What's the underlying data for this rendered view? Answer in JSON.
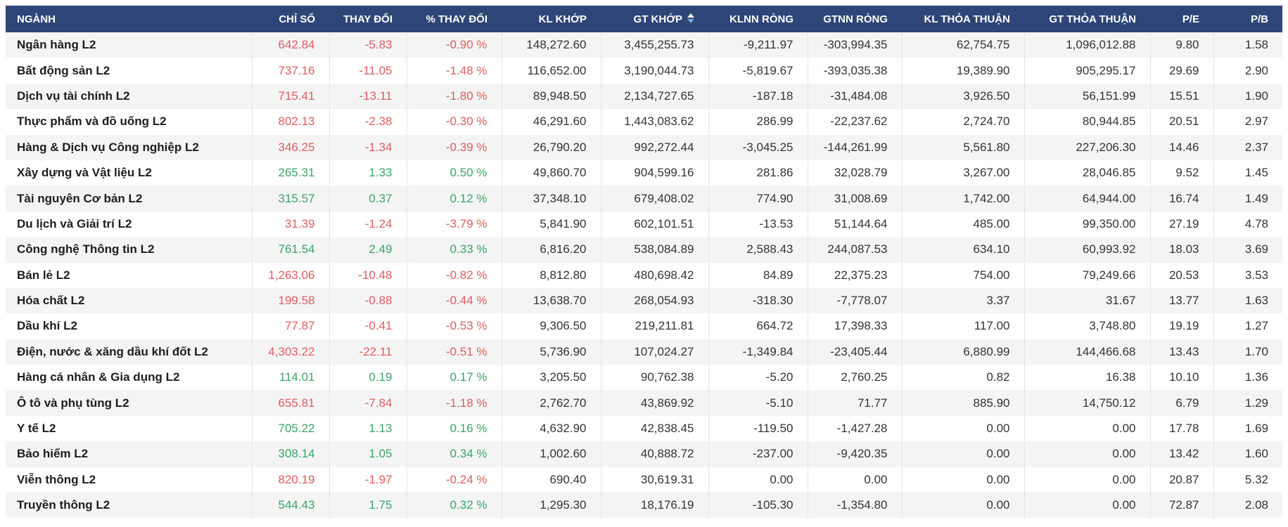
{
  "colors": {
    "header_bg": "#2e4677",
    "header_text": "#ffffff",
    "negative": "#e05c5c",
    "positive": "#3da366",
    "row_alt": "#f4f4f5",
    "cell_divider": "#e4e4e4",
    "sort_icon_active": "#ffffff",
    "sort_icon_inactive": "#7ea9dd"
  },
  "table": {
    "columns": [
      {
        "label": "NGÀNH",
        "align": "left"
      },
      {
        "label": "CHỈ SỐ",
        "align": "right"
      },
      {
        "label": "THAY ĐỔI",
        "align": "right"
      },
      {
        "label": "% THAY ĐỔI",
        "align": "right"
      },
      {
        "label": "KL KHỚP",
        "align": "right"
      },
      {
        "label": "GT KHỚP",
        "align": "right",
        "sorted": true,
        "sort_icon": "sort-arrows-icon"
      },
      {
        "label": "KLNN RÒNG",
        "align": "right"
      },
      {
        "label": "GTNN RÒNG",
        "align": "right"
      },
      {
        "label": "KL THỎA THUẬN",
        "align": "right"
      },
      {
        "label": "GT THỎA THUẬN",
        "align": "right"
      },
      {
        "label": "P/E",
        "align": "right"
      },
      {
        "label": "P/B",
        "align": "right"
      }
    ],
    "rows": [
      {
        "name": "Ngân hàng L2",
        "trend": "down",
        "cells": [
          "642.84",
          "-5.83",
          "-0.90 %",
          "148,272.60",
          "3,455,255.73",
          "-9,211.97",
          "-303,994.35",
          "62,754.75",
          "1,096,012.88",
          "9.80",
          "1.58"
        ]
      },
      {
        "name": "Bất động sản L2",
        "trend": "down",
        "cells": [
          "737.16",
          "-11.05",
          "-1.48 %",
          "116,652.00",
          "3,190,044.73",
          "-5,819.67",
          "-393,035.38",
          "19,389.90",
          "905,295.17",
          "29.69",
          "2.90"
        ]
      },
      {
        "name": "Dịch vụ tài chính L2",
        "trend": "down",
        "cells": [
          "715.41",
          "-13.11",
          "-1.80 %",
          "89,948.50",
          "2,134,727.65",
          "-187.18",
          "-31,484.08",
          "3,926.50",
          "56,151.99",
          "15.51",
          "1.90"
        ]
      },
      {
        "name": "Thực phẩm và đồ uống L2",
        "trend": "down",
        "cells": [
          "802.13",
          "-2.38",
          "-0.30 %",
          "46,291.60",
          "1,443,083.62",
          "286.99",
          "-22,237.62",
          "2,724.70",
          "80,944.85",
          "20.51",
          "2.97"
        ]
      },
      {
        "name": "Hàng & Dịch vụ Công nghiệp L2",
        "trend": "down",
        "cells": [
          "346.25",
          "-1.34",
          "-0.39 %",
          "26,790.20",
          "992,272.44",
          "-3,045.25",
          "-144,261.99",
          "5,561.80",
          "227,206.30",
          "14.46",
          "2.37"
        ]
      },
      {
        "name": "Xây dựng và Vật liệu L2",
        "trend": "up",
        "cells": [
          "265.31",
          "1.33",
          "0.50 %",
          "49,860.70",
          "904,599.16",
          "281.86",
          "32,028.79",
          "3,267.00",
          "28,046.85",
          "9.52",
          "1.45"
        ]
      },
      {
        "name": "Tài nguyên Cơ bản L2",
        "trend": "up",
        "cells": [
          "315.57",
          "0.37",
          "0.12 %",
          "37,348.10",
          "679,408.02",
          "774.90",
          "31,008.69",
          "1,742.00",
          "64,944.00",
          "16.74",
          "1.49"
        ]
      },
      {
        "name": "Du lịch và Giải trí L2",
        "trend": "down",
        "cells": [
          "31.39",
          "-1.24",
          "-3.79 %",
          "5,841.90",
          "602,101.51",
          "-13.53",
          "51,144.64",
          "485.00",
          "99,350.00",
          "27.19",
          "4.78"
        ]
      },
      {
        "name": "Công nghệ Thông tin L2",
        "trend": "up",
        "cells": [
          "761.54",
          "2.49",
          "0.33 %",
          "6,816.20",
          "538,084.89",
          "2,588.43",
          "244,087.53",
          "634.10",
          "60,993.92",
          "18.03",
          "3.69"
        ]
      },
      {
        "name": "Bán lẻ L2",
        "trend": "down",
        "cells": [
          "1,263.06",
          "-10.48",
          "-0.82 %",
          "8,812.80",
          "480,698.42",
          "84.89",
          "22,375.23",
          "754.00",
          "79,249.66",
          "20.53",
          "3.53"
        ]
      },
      {
        "name": "Hóa chất L2",
        "trend": "down",
        "cells": [
          "199.58",
          "-0.88",
          "-0.44 %",
          "13,638.70",
          "268,054.93",
          "-318.30",
          "-7,778.07",
          "3.37",
          "31.67",
          "13.77",
          "1.63"
        ]
      },
      {
        "name": "Dầu khí L2",
        "trend": "down",
        "cells": [
          "77.87",
          "-0.41",
          "-0.53 %",
          "9,306.50",
          "219,211.81",
          "664.72",
          "17,398.33",
          "117.00",
          "3,748.80",
          "19.19",
          "1.27"
        ]
      },
      {
        "name": "Điện, nước & xăng dầu khí đốt L2",
        "trend": "down",
        "cells": [
          "4,303.22",
          "-22.11",
          "-0.51 %",
          "5,736.90",
          "107,024.27",
          "-1,349.84",
          "-23,405.44",
          "6,880.99",
          "144,466.68",
          "13.43",
          "1.70"
        ]
      },
      {
        "name": "Hàng cá nhân & Gia dụng L2",
        "trend": "up",
        "cells": [
          "114.01",
          "0.19",
          "0.17 %",
          "3,205.50",
          "90,762.38",
          "-5.20",
          "2,760.25",
          "0.82",
          "16.38",
          "10.10",
          "1.36"
        ]
      },
      {
        "name": "Ô tô và phụ tùng L2",
        "trend": "down",
        "cells": [
          "655.81",
          "-7.84",
          "-1.18 %",
          "2,762.70",
          "43,869.92",
          "-5.10",
          "71.77",
          "885.90",
          "14,750.12",
          "6.79",
          "1.29"
        ]
      },
      {
        "name": "Y tế L2",
        "trend": "up",
        "cells": [
          "705.22",
          "1.13",
          "0.16 %",
          "4,632.90",
          "42,838.45",
          "-119.50",
          "-1,427.28",
          "0.00",
          "0.00",
          "17.78",
          "1.69"
        ]
      },
      {
        "name": "Bảo hiểm L2",
        "trend": "up",
        "cells": [
          "308.14",
          "1.05",
          "0.34 %",
          "1,002.60",
          "40,888.72",
          "-237.00",
          "-9,420.35",
          "0.00",
          "0.00",
          "13.42",
          "1.60"
        ]
      },
      {
        "name": "Viễn thông L2",
        "trend": "down",
        "cells": [
          "820.19",
          "-1.97",
          "-0.24 %",
          "690.40",
          "30,619.31",
          "0.00",
          "0.00",
          "0.00",
          "0.00",
          "20.87",
          "5.32"
        ]
      },
      {
        "name": "Truyền thông L2",
        "trend": "up",
        "cells": [
          "544.43",
          "1.75",
          "0.32 %",
          "1,295.30",
          "18,176.19",
          "-105.30",
          "-1,354.80",
          "0.00",
          "0.00",
          "72.87",
          "2.08"
        ]
      }
    ]
  }
}
